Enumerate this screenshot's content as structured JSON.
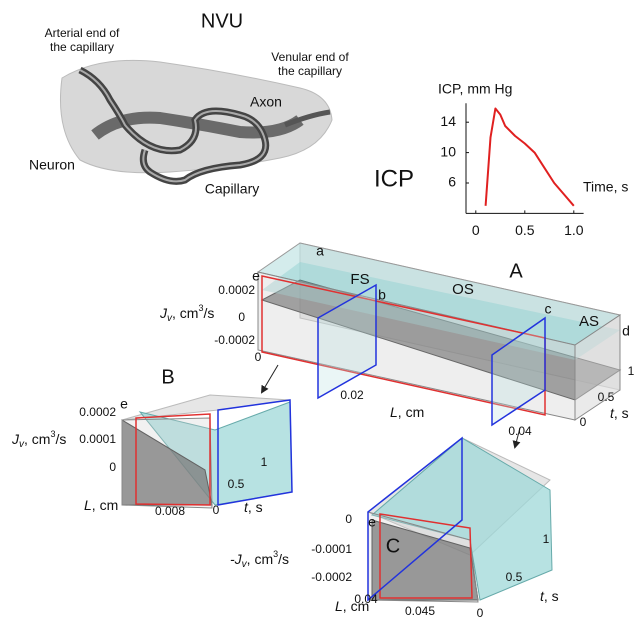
{
  "chart_data": {
    "type": "line",
    "y_label": "ICP, mm Hg",
    "x_label": "Time, s",
    "x": [
      0.1,
      0.15,
      0.2,
      0.25,
      0.3,
      0.4,
      0.5,
      0.6,
      0.7,
      0.8,
      0.9,
      1.0
    ],
    "values": [
      3,
      12,
      15.8,
      15,
      13.5,
      12.2,
      11.2,
      10,
      8,
      6,
      4.5,
      3
    ],
    "color": "#e02020",
    "xlim": [
      -0.1,
      1.1
    ],
    "xticks": [
      0,
      0.5,
      {
        "value": 1,
        "label": "1.0"
      }
    ],
    "ylim": [
      2,
      16.5
    ],
    "yticks": [
      6,
      10,
      14
    ]
  },
  "figure": {
    "photo": {
      "title": "NVU",
      "arterial": [
        "Arterial end of",
        "the capillary"
      ],
      "venular": [
        "Venular end of",
        "the capillary"
      ],
      "axon": "Axon",
      "neuron": "Neuron",
      "capillary": "Capillary"
    },
    "icp_label": "ICP",
    "panel_a": {
      "label": "A",
      "points": [
        "a",
        "b",
        "c",
        "d",
        "e"
      ],
      "regions": [
        "FS",
        "OS",
        "AS"
      ],
      "y_label": [
        "J",
        "v",
        ", cm",
        "3",
        "/s"
      ],
      "y_ticks": [
        "0.0002",
        "0",
        "-0.0002"
      ],
      "x_label": [
        "L",
        ", cm"
      ],
      "x_ticks": [
        "0",
        "0.02",
        "0.04"
      ],
      "t_label": [
        "t",
        ", s"
      ],
      "t_ticks": [
        "0",
        "0.5",
        "1"
      ]
    },
    "panel_b": {
      "label": "B",
      "point": "e",
      "y_label": [
        "J",
        "v",
        ", cm",
        "3",
        "/s"
      ],
      "y_ticks": [
        "0.0002",
        "0.0001",
        "0"
      ],
      "x_label": [
        "L",
        ", cm"
      ],
      "x_ticks": [
        "0.008"
      ],
      "t_label": [
        "t",
        ", s"
      ],
      "t_ticks": [
        "0",
        "0.5",
        "1"
      ]
    },
    "panel_c": {
      "label": "C",
      "point": "e",
      "y_label": [
        "-J",
        "v",
        ", cm",
        "3",
        "/s"
      ],
      "y_ticks": [
        "0",
        "-0.0001",
        "-0.0002"
      ],
      "x_label": [
        "L",
        ", cm"
      ],
      "x_ticks": [
        "0.04",
        "0.045"
      ],
      "t_label": [
        "t",
        ", s"
      ],
      "t_ticks": [
        "0",
        "0.5",
        "1"
      ]
    }
  }
}
